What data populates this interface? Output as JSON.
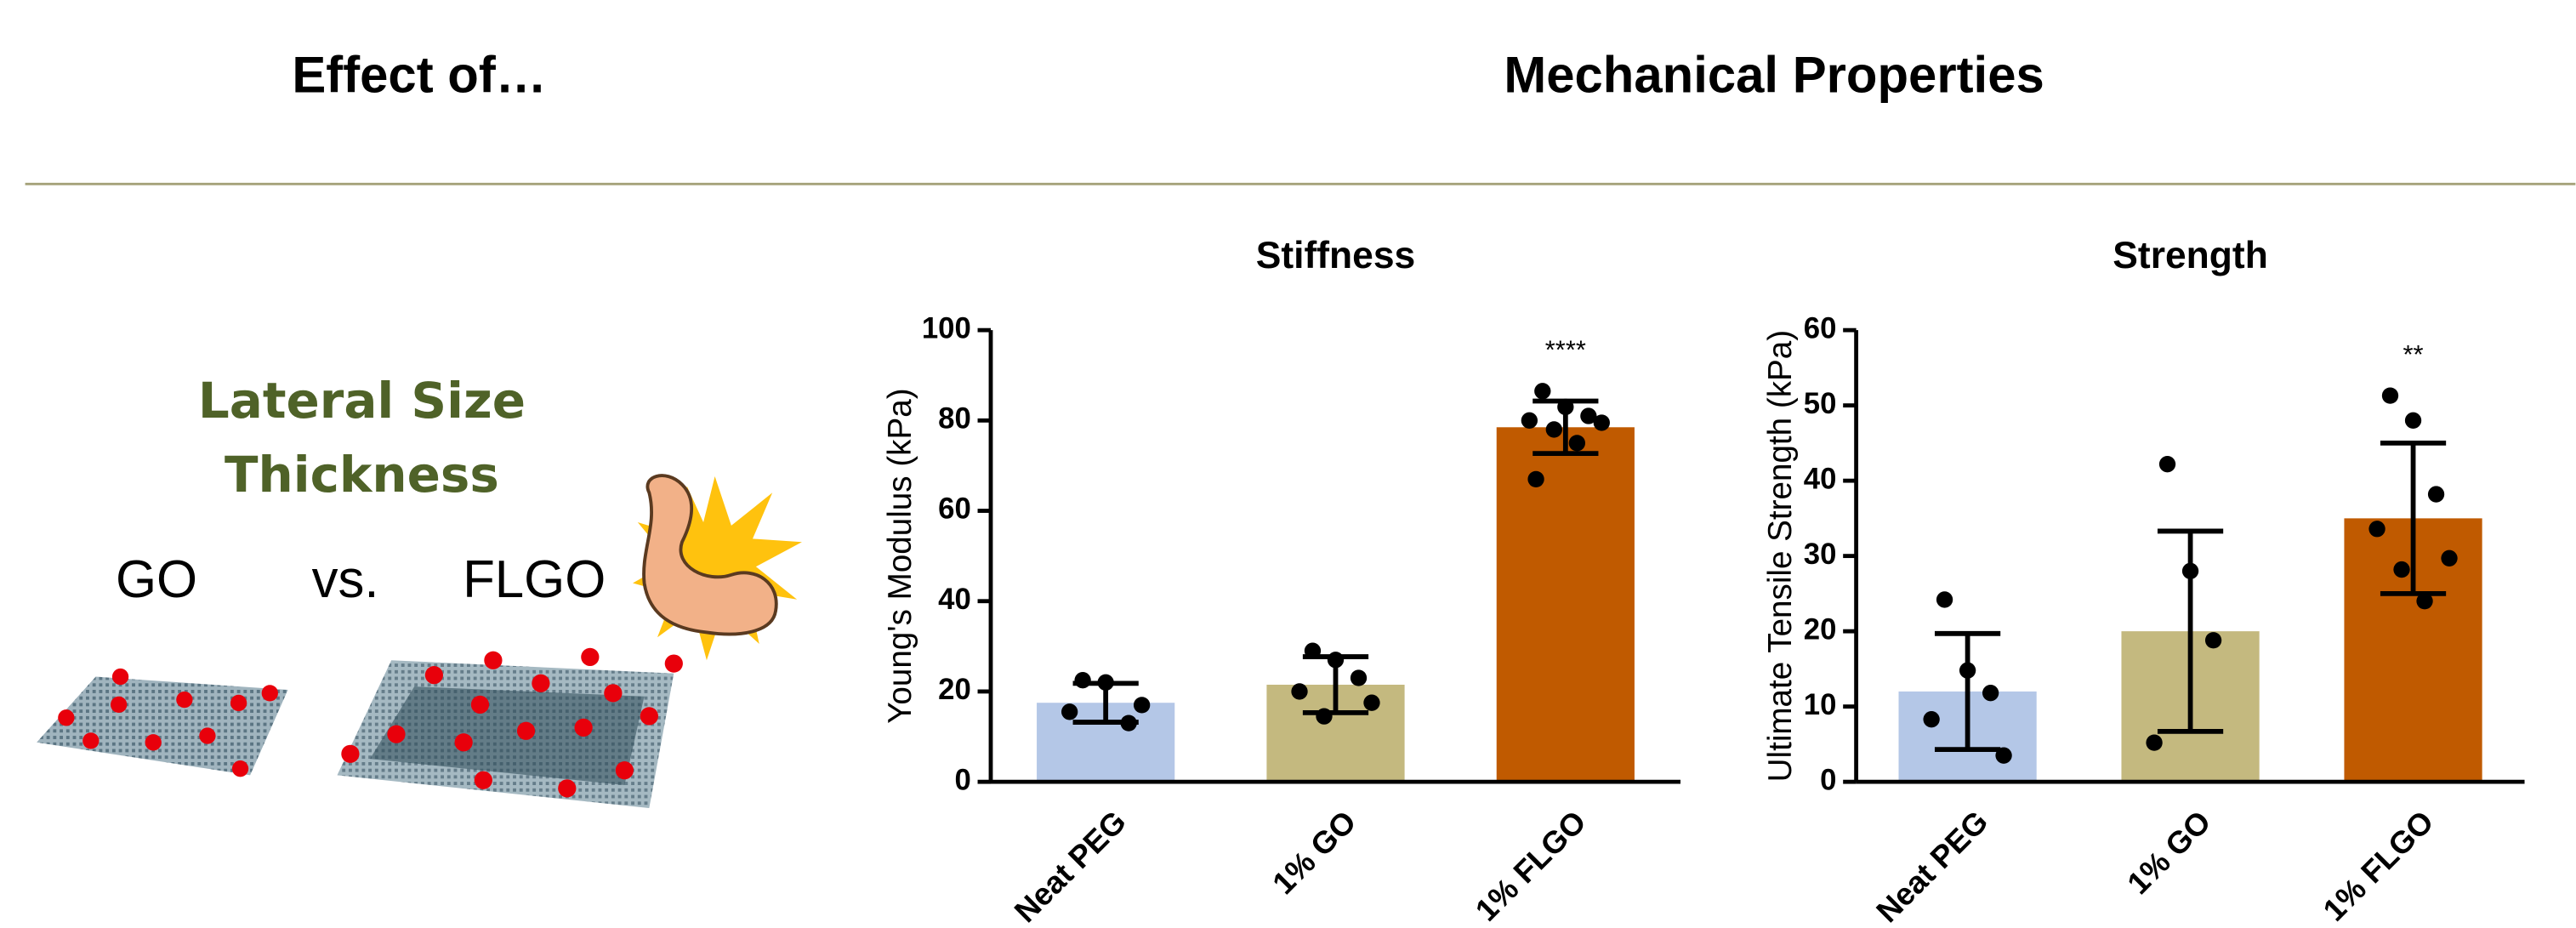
{
  "header": {
    "left": "Effect of…",
    "right": "Mechanical Properties"
  },
  "illustration": {
    "factors": [
      "Lateral Size",
      "Thickness"
    ],
    "left_label": "GO",
    "versus": "vs.",
    "right_label": "FLGO"
  },
  "chart_data": [
    {
      "type": "bar",
      "title": "Stiffness",
      "y_label": "Young's Modulus (kPa)",
      "categories": [
        "Neat PEG",
        "1% GO",
        "1% FLGO"
      ],
      "values": [
        17.5,
        21.5,
        78.5
      ],
      "errors": [
        4.3,
        6.2,
        5.8
      ],
      "points": [
        [
          22.5,
          22,
          13,
          15.5,
          17
        ],
        [
          29,
          27,
          23,
          20,
          17.5,
          14.5
        ],
        [
          86.5,
          83,
          81,
          80,
          79.5,
          78,
          75,
          67
        ]
      ],
      "annotations": [
        null,
        null,
        "****"
      ],
      "colors": [
        "#b4c7e7",
        "#c4b97f",
        "#c05a00"
      ],
      "ylim": [
        0,
        100
      ],
      "yticks": [
        0,
        20,
        40,
        60,
        80,
        100
      ]
    },
    {
      "type": "bar",
      "title": "Strength",
      "y_label": "Ultimate Tensile Strength (kPa)",
      "categories": [
        "Neat PEG",
        "1% GO",
        "1% FLGO"
      ],
      "values": [
        12,
        20,
        35
      ],
      "errors": [
        7.7,
        13.3,
        10
      ],
      "points": [
        [
          24.2,
          14.8,
          11.8,
          8.3,
          3.5
        ],
        [
          42.2,
          28,
          18.8,
          5.2
        ],
        [
          51.3,
          48,
          38.2,
          33.6,
          29.7,
          28.2,
          24
        ]
      ],
      "annotations": [
        null,
        null,
        "**"
      ],
      "colors": [
        "#b4c7e7",
        "#c4b97f",
        "#c05a00"
      ],
      "ylim": [
        0,
        60
      ],
      "yticks": [
        0,
        10,
        20,
        30,
        40,
        50,
        60
      ]
    }
  ]
}
